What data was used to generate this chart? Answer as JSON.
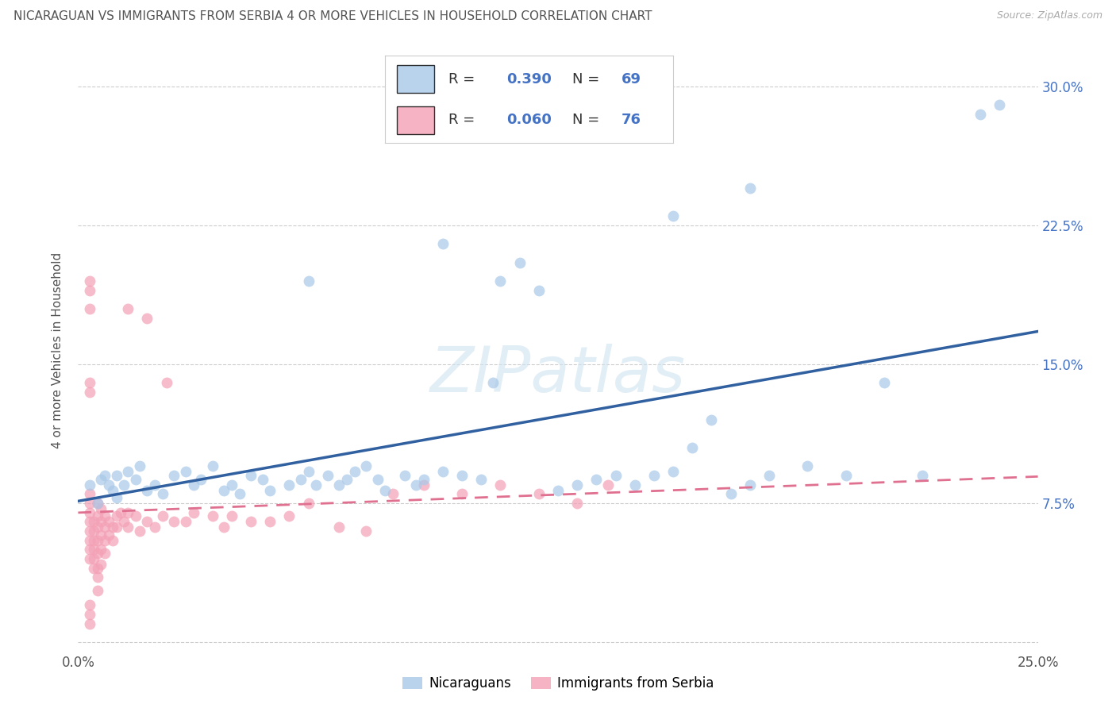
{
  "title": "NICARAGUAN VS IMMIGRANTS FROM SERBIA 4 OR MORE VEHICLES IN HOUSEHOLD CORRELATION CHART",
  "source": "Source: ZipAtlas.com",
  "ylabel": "4 or more Vehicles in Household",
  "xlim": [
    0.0,
    0.25
  ],
  "ylim": [
    -0.005,
    0.32
  ],
  "xtick_positions": [
    0.0,
    0.05,
    0.1,
    0.15,
    0.2,
    0.25
  ],
  "xtick_labels": [
    "0.0%",
    "",
    "",
    "",
    "",
    "25.0%"
  ],
  "ytick_positions": [
    0.0,
    0.075,
    0.15,
    0.225,
    0.3
  ],
  "ytick_labels": [
    "",
    "7.5%",
    "15.0%",
    "22.5%",
    "30.0%"
  ],
  "legend_labels": [
    "Nicaraguans",
    "Immigrants from Serbia"
  ],
  "R_nicaraguan": 0.39,
  "N_nicaraguan": 69,
  "R_serbia": 0.06,
  "N_serbia": 76,
  "blue_color": "#a8c8e8",
  "pink_color": "#f4a0b5",
  "blue_line_color": "#3060a0",
  "pink_line_color": "#e07090",
  "watermark": "ZIPatlas",
  "blue_scatter_x": [
    0.003,
    0.005,
    0.006,
    0.007,
    0.008,
    0.009,
    0.01,
    0.01,
    0.012,
    0.013,
    0.015,
    0.016,
    0.018,
    0.02,
    0.022,
    0.025,
    0.028,
    0.03,
    0.032,
    0.035,
    0.038,
    0.04,
    0.042,
    0.045,
    0.048,
    0.05,
    0.055,
    0.058,
    0.06,
    0.062,
    0.065,
    0.068,
    0.07,
    0.072,
    0.075,
    0.078,
    0.08,
    0.085,
    0.088,
    0.09,
    0.095,
    0.1,
    0.105,
    0.11,
    0.115,
    0.12,
    0.125,
    0.13,
    0.135,
    0.14,
    0.145,
    0.15,
    0.155,
    0.16,
    0.165,
    0.17,
    0.175,
    0.18,
    0.19,
    0.2,
    0.21,
    0.22,
    0.235,
    0.108,
    0.155,
    0.175,
    0.24,
    0.095,
    0.06
  ],
  "blue_scatter_y": [
    0.085,
    0.075,
    0.088,
    0.09,
    0.085,
    0.082,
    0.09,
    0.078,
    0.085,
    0.092,
    0.088,
    0.095,
    0.082,
    0.085,
    0.08,
    0.09,
    0.092,
    0.085,
    0.088,
    0.095,
    0.082,
    0.085,
    0.08,
    0.09,
    0.088,
    0.082,
    0.085,
    0.088,
    0.092,
    0.085,
    0.09,
    0.085,
    0.088,
    0.092,
    0.095,
    0.088,
    0.082,
    0.09,
    0.085,
    0.088,
    0.092,
    0.09,
    0.088,
    0.195,
    0.205,
    0.19,
    0.082,
    0.085,
    0.088,
    0.09,
    0.085,
    0.09,
    0.092,
    0.105,
    0.12,
    0.08,
    0.085,
    0.09,
    0.095,
    0.09,
    0.14,
    0.09,
    0.285,
    0.14,
    0.23,
    0.245,
    0.29,
    0.215,
    0.195
  ],
  "pink_scatter_x": [
    0.003,
    0.003,
    0.003,
    0.003,
    0.003,
    0.003,
    0.003,
    0.003,
    0.004,
    0.004,
    0.004,
    0.004,
    0.004,
    0.004,
    0.005,
    0.005,
    0.005,
    0.005,
    0.005,
    0.005,
    0.005,
    0.005,
    0.006,
    0.006,
    0.006,
    0.006,
    0.006,
    0.007,
    0.007,
    0.007,
    0.007,
    0.008,
    0.008,
    0.009,
    0.009,
    0.01,
    0.01,
    0.011,
    0.012,
    0.013,
    0.013,
    0.015,
    0.016,
    0.018,
    0.02,
    0.022,
    0.025,
    0.028,
    0.03,
    0.035,
    0.038,
    0.04,
    0.045,
    0.05,
    0.055,
    0.06,
    0.068,
    0.075,
    0.082,
    0.09,
    0.1,
    0.11,
    0.12,
    0.13,
    0.138,
    0.003,
    0.003,
    0.003,
    0.003,
    0.003,
    0.003,
    0.003,
    0.003,
    0.013,
    0.018,
    0.023
  ],
  "pink_scatter_y": [
    0.065,
    0.07,
    0.075,
    0.08,
    0.06,
    0.055,
    0.05,
    0.045,
    0.065,
    0.06,
    0.055,
    0.05,
    0.045,
    0.04,
    0.075,
    0.068,
    0.062,
    0.055,
    0.048,
    0.04,
    0.035,
    0.028,
    0.072,
    0.065,
    0.058,
    0.05,
    0.042,
    0.068,
    0.062,
    0.055,
    0.048,
    0.065,
    0.058,
    0.062,
    0.055,
    0.068,
    0.062,
    0.07,
    0.065,
    0.07,
    0.062,
    0.068,
    0.06,
    0.065,
    0.062,
    0.068,
    0.065,
    0.065,
    0.07,
    0.068,
    0.062,
    0.068,
    0.065,
    0.065,
    0.068,
    0.075,
    0.062,
    0.06,
    0.08,
    0.085,
    0.08,
    0.085,
    0.08,
    0.075,
    0.085,
    0.19,
    0.195,
    0.18,
    0.14,
    0.135,
    0.02,
    0.015,
    0.01,
    0.18,
    0.175,
    0.14
  ]
}
